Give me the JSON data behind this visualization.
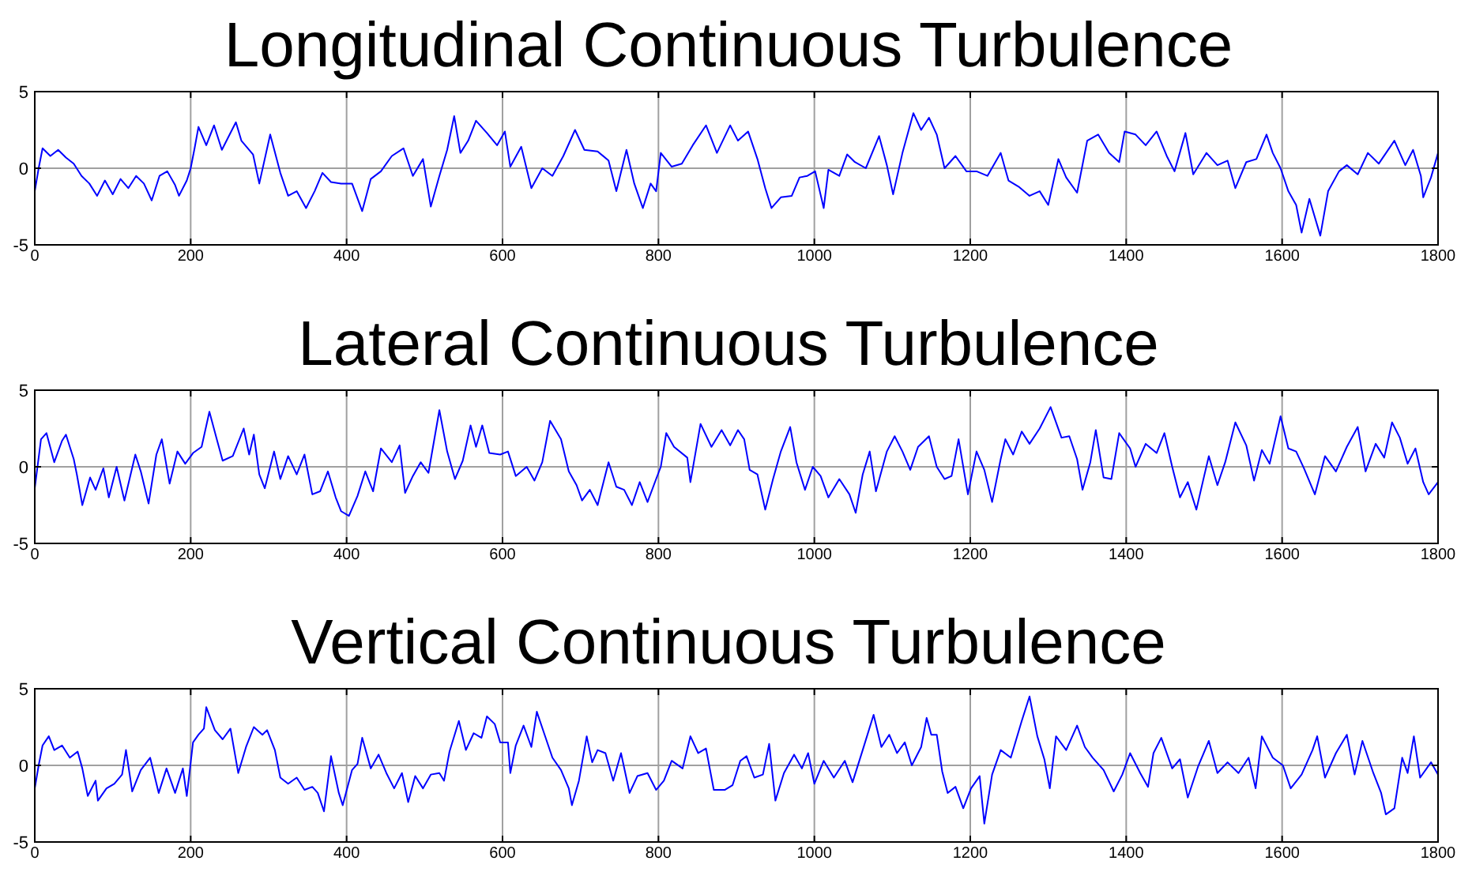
{
  "chart_data": [
    {
      "type": "line",
      "title": "Longitudinal Continuous Turbulence",
      "xlim": [
        0,
        1800
      ],
      "ylim": [
        -5,
        5
      ],
      "xticks": [
        0,
        200,
        400,
        600,
        800,
        1000,
        1200,
        1400,
        1600,
        1800
      ],
      "yticks": [
        -5,
        0,
        5
      ],
      "grid": true,
      "series": [
        {
          "color": "#0000ff",
          "x": [
            0,
            5,
            10,
            20,
            30,
            40,
            50,
            60,
            70,
            80,
            90,
            100,
            110,
            120,
            130,
            140,
            150,
            160,
            170,
            180,
            185,
            195,
            200,
            205,
            210,
            220,
            230,
            240,
            250,
            258,
            265,
            280,
            288,
            302,
            315,
            325,
            336,
            348,
            359,
            369,
            380,
            393,
            407,
            420,
            431,
            444,
            458,
            473,
            485,
            498,
            508,
            519,
            529,
            538,
            546,
            556,
            566,
            580,
            593,
            603,
            610,
            624,
            637,
            651,
            664,
            678,
            693,
            705,
            722,
            736,
            746,
            759,
            769,
            780,
            790,
            797,
            803,
            817,
            830,
            844,
            861,
            875,
            892,
            902,
            915,
            927,
            937,
            945,
            957,
            971,
            981,
            991,
            1001,
            1012,
            1018,
            1032,
            1042,
            1052,
            1066,
            1083,
            1093,
            1101,
            1113,
            1127,
            1137,
            1147,
            1157,
            1167,
            1181,
            1195,
            1208,
            1222,
            1239,
            1249,
            1262,
            1276,
            1289,
            1300,
            1313,
            1323,
            1337,
            1350,
            1364,
            1378,
            1391,
            1398,
            1412,
            1425,
            1439,
            1452,
            1462,
            1476,
            1486,
            1503,
            1517,
            1530,
            1540,
            1554,
            1567,
            1580,
            1588,
            1598,
            1608,
            1618,
            1625,
            1635,
            1649,
            1659,
            1673,
            1683,
            1697,
            1710,
            1724,
            1744,
            1758,
            1768,
            1778,
            1781,
            1791,
            1800
          ],
          "values": [
            -1.5,
            0,
            1.3,
            0.8,
            1.2,
            0.7,
            0.3,
            -0.5,
            -1.0,
            -1.8,
            -0.8,
            -1.7,
            -0.7,
            -1.3,
            -0.5,
            -1.0,
            -2.1,
            -0.5,
            -0.2,
            -1.1,
            -1.8,
            -0.8,
            0,
            1.3,
            2.7,
            1.5,
            2.8,
            1.2,
            2.2,
            3.0,
            1.8,
            0.9,
            -1.0,
            2.2,
            -0.3,
            -1.8,
            -1.5,
            -2.6,
            -1.5,
            -0.3,
            -0.9,
            -1.0,
            -1.0,
            -2.8,
            -0.7,
            -0.2,
            0.8,
            1.3,
            -0.5,
            0.6,
            -2.5,
            -0.5,
            1.2,
            3.4,
            1.0,
            1.8,
            3.1,
            2.3,
            1.5,
            2.4,
            0.1,
            1.4,
            -1.3,
            0,
            -0.5,
            0.8,
            2.5,
            1.2,
            1.1,
            0.5,
            -1.5,
            1.2,
            -1.0,
            -2.6,
            -1.0,
            -1.5,
            1.0,
            0.1,
            0.3,
            1.5,
            2.8,
            1.0,
            2.8,
            1.8,
            2.4,
            0.6,
            -1.3,
            -2.6,
            -1.9,
            -1.8,
            -0.6,
            -0.5,
            -0.2,
            -2.6,
            -0.1,
            -0.5,
            0.9,
            0.4,
            0,
            2.1,
            0.2,
            -1.7,
            1.0,
            3.6,
            2.5,
            3.3,
            2.2,
            0,
            0.8,
            -0.2,
            -0.2,
            -0.5,
            1.0,
            -0.8,
            -1.2,
            -1.8,
            -1.5,
            -2.4,
            0.6,
            -0.6,
            -1.6,
            1.8,
            2.2,
            1.0,
            0.4,
            2.4,
            2.2,
            1.5,
            2.4,
            0.8,
            -0.2,
            2.3,
            -0.4,
            1.0,
            0.2,
            0.5,
            -1.3,
            0.4,
            0.6,
            2.2,
            1.0,
            0,
            -1.5,
            -2.4,
            -4.2,
            -2.0,
            -4.4,
            -1.5,
            -0.2,
            0.2,
            -0.4,
            1.0,
            0.3,
            1.8,
            0.2,
            1.2,
            -0.5,
            -1.9,
            -0.6,
            1.0
          ]
        }
      ]
    },
    {
      "type": "line",
      "title": "Lateral Continuous Turbulence",
      "xlim": [
        0,
        1800
      ],
      "ylim": [
        -5,
        5
      ],
      "xticks": [
        0,
        200,
        400,
        600,
        800,
        1000,
        1200,
        1400,
        1600,
        1800
      ],
      "yticks": [
        -5,
        0,
        5
      ],
      "grid": true,
      "series": [
        {
          "color": "#0000ff",
          "x": [
            0,
            8,
            15,
            25,
            35,
            40,
            50,
            54,
            61,
            71,
            78,
            88,
            95,
            105,
            115,
            129,
            136,
            146,
            156,
            163,
            173,
            183,
            193,
            203,
            214,
            224,
            234,
            241,
            254,
            268,
            275,
            281,
            288,
            295,
            307,
            315,
            325,
            336,
            346,
            356,
            366,
            376,
            386,
            393,
            403,
            414,
            424,
            434,
            444,
            458,
            468,
            475,
            485,
            495,
            505,
            519,
            529,
            539,
            549,
            559,
            566,
            574,
            583,
            597,
            607,
            617,
            631,
            641,
            651,
            661,
            675,
            685,
            695,
            702,
            712,
            722,
            736,
            746,
            756,
            766,
            776,
            786,
            797,
            803,
            810,
            820,
            837,
            841,
            854,
            868,
            881,
            892,
            902,
            910,
            917,
            927,
            937,
            947,
            957,
            969,
            977,
            988,
            998,
            1008,
            1018,
            1032,
            1045,
            1053,
            1062,
            1071,
            1079,
            1093,
            1103,
            1113,
            1123,
            1133,
            1147,
            1157,
            1167,
            1176,
            1185,
            1197,
            1208,
            1218,
            1228,
            1239,
            1245,
            1255,
            1266,
            1276,
            1289,
            1303,
            1317,
            1327,
            1337,
            1344,
            1354,
            1361,
            1371,
            1381,
            1391,
            1405,
            1412,
            1425,
            1439,
            1449,
            1459,
            1469,
            1479,
            1490,
            1500,
            1506,
            1517,
            1527,
            1540,
            1554,
            1564,
            1574,
            1584,
            1598,
            1608,
            1618,
            1628,
            1642,
            1655,
            1669,
            1683,
            1697,
            1707,
            1720,
            1731,
            1741,
            1751,
            1761,
            1771,
            1781,
            1788,
            1800
          ],
          "values": [
            -1.4,
            1.8,
            2.2,
            0.3,
            1.7,
            2.1,
            0.5,
            -0.5,
            -2.5,
            -0.7,
            -1.5,
            -0.1,
            -2.0,
            0,
            -2.2,
            0.8,
            -0.3,
            -2.4,
            0.8,
            1.8,
            -1.1,
            1.0,
            0.2,
            0.9,
            1.3,
            3.6,
            1.7,
            0.4,
            0.7,
            2.5,
            0.8,
            2.1,
            -0.5,
            -1.4,
            1.0,
            -0.8,
            0.7,
            -0.5,
            0.8,
            -1.8,
            -1.6,
            -0.3,
            -2.0,
            -2.9,
            -3.2,
            -1.9,
            -0.3,
            -1.6,
            1.2,
            0.3,
            1.4,
            -1.7,
            -0.6,
            0.3,
            -0.4,
            3.7,
            1.0,
            -0.8,
            0.4,
            2.7,
            1.3,
            2.7,
            0.9,
            0.8,
            1.0,
            -0.6,
            0,
            -0.9,
            0.3,
            3.0,
            1.8,
            -0.3,
            -1.2,
            -2.2,
            -1.5,
            -2.5,
            0.3,
            -1.3,
            -1.5,
            -2.5,
            -1.0,
            -2.3,
            -0.8,
            0,
            2.2,
            1.3,
            0.6,
            -1.0,
            2.8,
            1.3,
            2.4,
            1.4,
            2.4,
            1.8,
            -0.2,
            -0.5,
            -2.8,
            -0.8,
            1.0,
            2.6,
            0.3,
            -1.5,
            0,
            -0.6,
            -2.0,
            -0.8,
            -1.8,
            -3.0,
            -0.5,
            1.0,
            -1.6,
            1.0,
            2.0,
            1.0,
            -0.2,
            1.3,
            2.0,
            0,
            -0.8,
            -0.6,
            1.8,
            -1.8,
            1.0,
            -0.2,
            -2.3,
            0.5,
            1.8,
            0.8,
            2.3,
            1.5,
            2.5,
            3.9,
            1.9,
            2.0,
            0.5,
            -1.5,
            0.3,
            2.4,
            -0.7,
            -0.8,
            2.2,
            1.2,
            0,
            1.5,
            0.9,
            2.2,
            0,
            -2.0,
            -1.0,
            -2.8,
            -0.6,
            0.7,
            -1.2,
            0.3,
            2.9,
            1.4,
            -0.9,
            1.1,
            0.2,
            3.3,
            1.2,
            1.0,
            -0.1,
            -1.8,
            0.7,
            -0.3,
            1.3,
            2.6,
            -0.3,
            1.5,
            0.6,
            2.9,
            1.9,
            0.2,
            1.2,
            -1.0,
            -1.8,
            -1.0
          ]
        }
      ]
    },
    {
      "type": "line",
      "title": "Vertical Continuous Turbulence",
      "xlim": [
        0,
        1800
      ],
      "ylim": [
        -5,
        5
      ],
      "xticks": [
        0,
        200,
        400,
        600,
        800,
        1000,
        1200,
        1400,
        1600,
        1800
      ],
      "yticks": [
        -5,
        0,
        5
      ],
      "grid": true,
      "series": [
        {
          "color": "#0000ff",
          "x": [
            0,
            5,
            10,
            18,
            25,
            35,
            45,
            55,
            61,
            68,
            78,
            81,
            92,
            102,
            112,
            117,
            125,
            136,
            148,
            159,
            169,
            180,
            190,
            195,
            203,
            210,
            217,
            220,
            231,
            241,
            251,
            261,
            271,
            281,
            292,
            298,
            308,
            315,
            325,
            336,
            346,
            356,
            363,
            371,
            380,
            390,
            395,
            407,
            414,
            420,
            431,
            441,
            451,
            461,
            471,
            479,
            488,
            498,
            508,
            519,
            525,
            532,
            544,
            553,
            563,
            573,
            580,
            590,
            597,
            607,
            610,
            617,
            627,
            637,
            644,
            654,
            664,
            675,
            685,
            689,
            698,
            708,
            715,
            722,
            732,
            742,
            752,
            763,
            773,
            786,
            797,
            807,
            817,
            831,
            841,
            851,
            861,
            871,
            885,
            895,
            905,
            913,
            923,
            934,
            942,
            950,
            961,
            974,
            984,
            992,
            1000,
            1012,
            1025,
            1039,
            1049,
            1062,
            1076,
            1086,
            1096,
            1106,
            1116,
            1125,
            1137,
            1144,
            1150,
            1157,
            1164,
            1171,
            1181,
            1191,
            1201,
            1212,
            1218,
            1228,
            1239,
            1252,
            1266,
            1276,
            1286,
            1295,
            1302,
            1310,
            1323,
            1337,
            1347,
            1357,
            1371,
            1384,
            1395,
            1405,
            1418,
            1428,
            1435,
            1445,
            1459,
            1469,
            1479,
            1492,
            1506,
            1517,
            1530,
            1544,
            1557,
            1566,
            1574,
            1588,
            1601,
            1611,
            1625,
            1639,
            1645,
            1655,
            1669,
            1683,
            1693,
            1703,
            1717,
            1727,
            1733,
            1744,
            1754,
            1761,
            1769,
            1777,
            1791,
            1800
          ],
          "values": [
            -1.5,
            0,
            1.3,
            1.9,
            1.0,
            1.3,
            0.5,
            0.9,
            -0.2,
            -2.0,
            -1.0,
            -2.3,
            -1.5,
            -1.2,
            -0.6,
            1.0,
            -1.7,
            -0.3,
            0.5,
            -1.8,
            -0.2,
            -1.8,
            -0.2,
            -2.0,
            1.5,
            2.0,
            2.4,
            3.8,
            2.3,
            1.7,
            2.4,
            -0.5,
            1.2,
            2.5,
            2.0,
            2.3,
            1.0,
            -0.8,
            -1.2,
            -0.8,
            -1.6,
            -1.4,
            -1.8,
            -3.0,
            0.6,
            -1.8,
            -2.6,
            -0.3,
            0.1,
            1.8,
            -0.2,
            0.7,
            -0.5,
            -1.5,
            -0.5,
            -2.4,
            -0.7,
            -1.5,
            -0.6,
            -0.5,
            -1.0,
            0.9,
            2.9,
            1.0,
            2.1,
            1.8,
            3.2,
            2.7,
            1.5,
            1.5,
            -0.5,
            1.3,
            2.6,
            1.2,
            3.5,
            2.0,
            0.5,
            -0.3,
            -1.5,
            -2.6,
            -1.0,
            1.9,
            0.2,
            1.0,
            0.8,
            -1.0,
            0.8,
            -1.8,
            -0.7,
            -0.5,
            -1.6,
            -1.0,
            0.3,
            -0.2,
            1.9,
            0.8,
            1.1,
            -1.6,
            -1.6,
            -1.3,
            0.3,
            0.6,
            -0.8,
            -0.6,
            1.4,
            -2.3,
            -0.5,
            0.7,
            -0.2,
            0.8,
            -1.2,
            0.3,
            -0.8,
            0.3,
            -1.1,
            1.0,
            3.3,
            1.2,
            2.0,
            0.8,
            1.5,
            0,
            1.2,
            3.1,
            2.0,
            2.0,
            -0.4,
            -1.8,
            -1.4,
            -2.8,
            -1.5,
            -0.7,
            -3.8,
            -0.6,
            1.0,
            0.5,
            2.9,
            4.5,
            1.9,
            0.4,
            -1.5,
            1.9,
            1.0,
            2.6,
            1.2,
            0.5,
            -0.3,
            -1.7,
            -0.6,
            0.8,
            -0.5,
            -1.4,
            0.8,
            1.8,
            -0.2,
            0.4,
            -2.1,
            -0.1,
            1.6,
            -0.5,
            0.2,
            -0.5,
            0.5,
            -1.5,
            1.9,
            0.5,
            0,
            -1.5,
            -0.6,
            1.0,
            1.9,
            -0.8,
            0.8,
            2.0,
            -0.6,
            1.6,
            -0.5,
            -1.8,
            -3.2,
            -2.8,
            0.5,
            -0.5,
            1.9,
            -0.8,
            0.2,
            -0.6
          ]
        }
      ]
    }
  ]
}
